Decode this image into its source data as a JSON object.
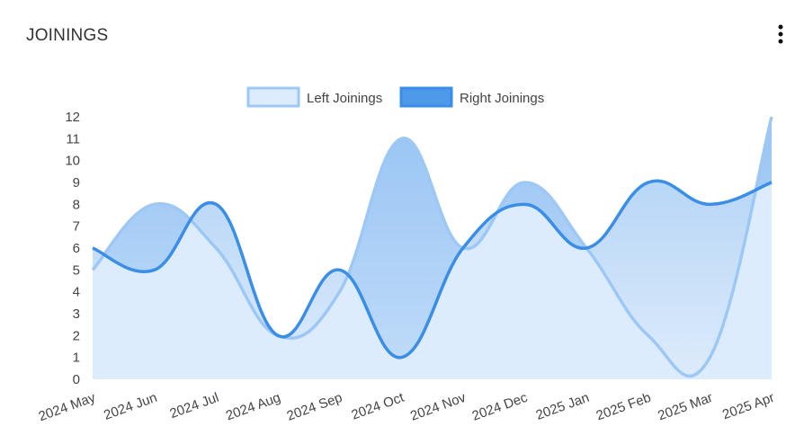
{
  "header": {
    "title": "JOININGS"
  },
  "chart_data": {
    "type": "area-line",
    "categories": [
      "2024 May",
      "2024 Jun",
      "2024 Jul",
      "2024 Aug",
      "2024 Sep",
      "2024 Oct",
      "2024 Nov",
      "2024 Dec",
      "2025 Jan",
      "2025 Feb",
      "2025 Mar",
      "2025 Apr"
    ],
    "series": [
      {
        "name": "Left Joinings",
        "color": "#9dc8f5",
        "values": [
          5,
          8,
          6,
          2,
          4,
          11,
          6,
          9,
          6,
          2,
          1,
          12
        ]
      },
      {
        "name": "Right Joinings",
        "color": "#3a8ee8",
        "values": [
          6,
          5,
          8,
          2,
          5,
          1,
          6,
          8,
          6,
          9,
          8,
          9
        ]
      }
    ],
    "ylim": [
      0,
      12
    ],
    "yticks": [
      0,
      1,
      2,
      3,
      4,
      5,
      6,
      7,
      8,
      9,
      10,
      11,
      12
    ]
  }
}
